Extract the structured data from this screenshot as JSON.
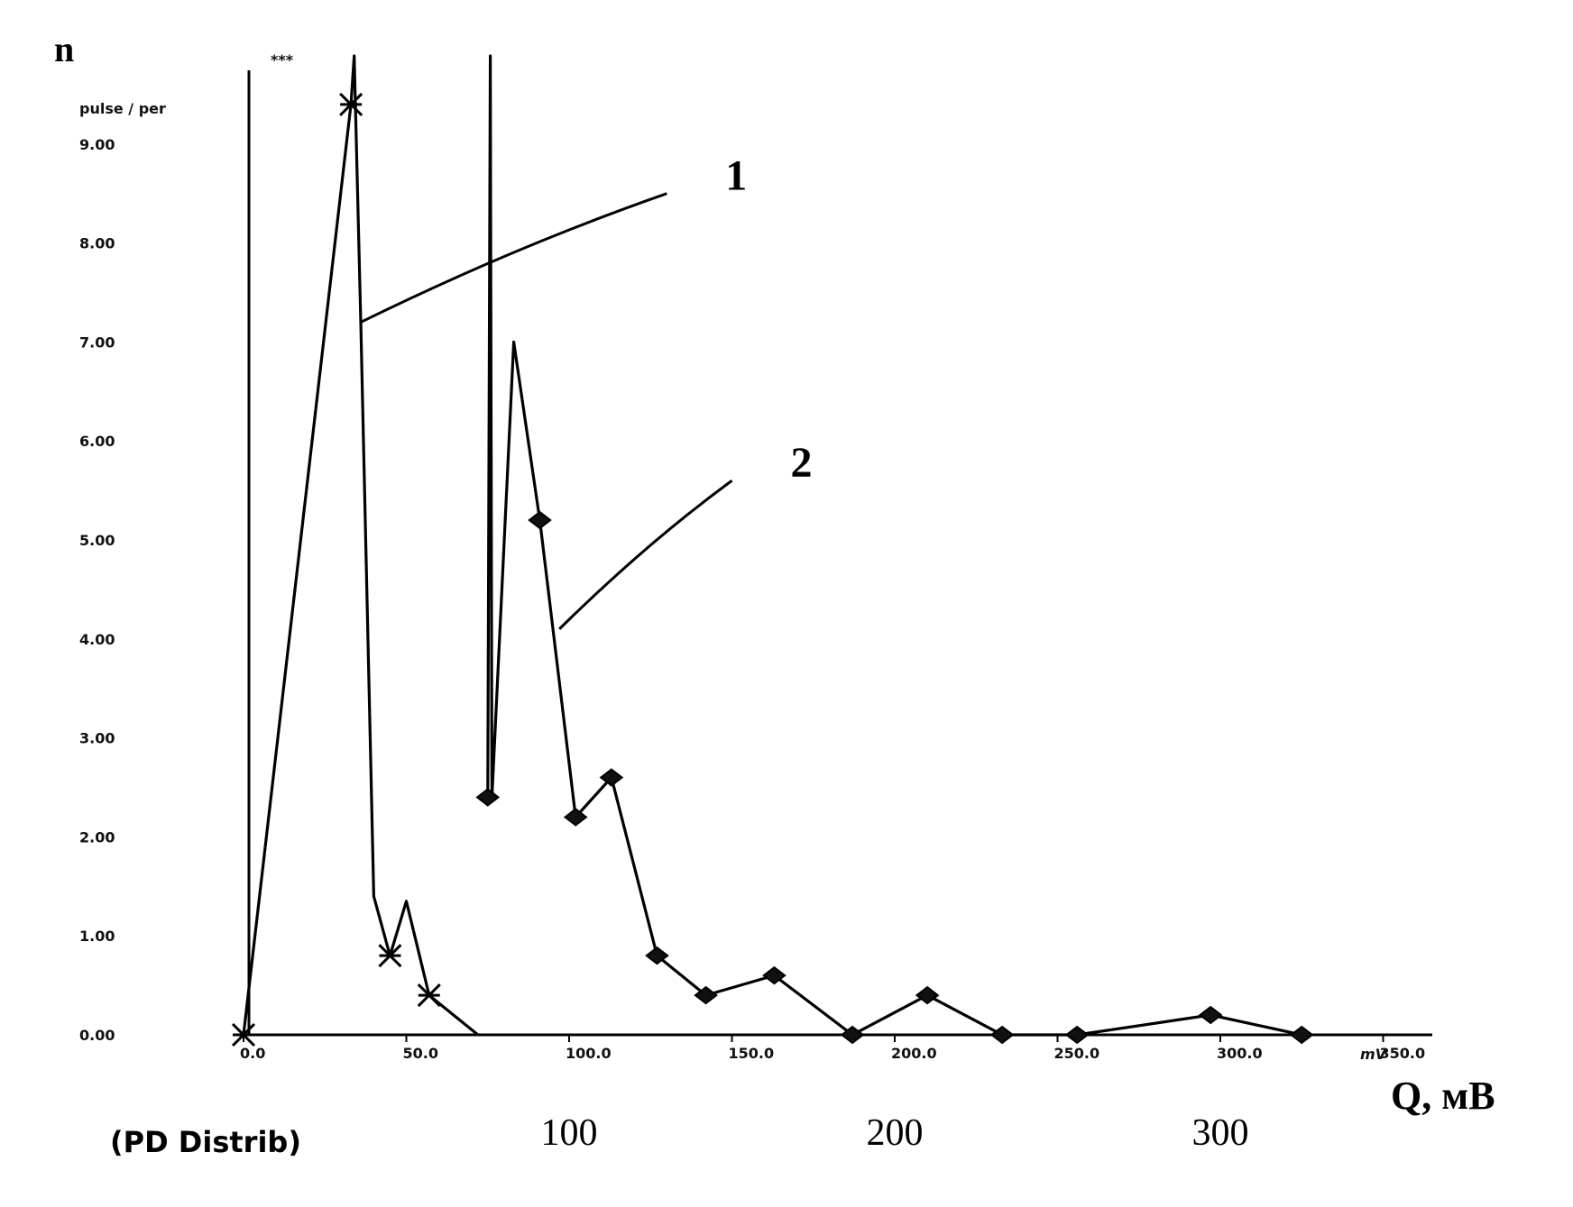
{
  "chart_data": {
    "type": "line",
    "y_label_symbol": "n",
    "y_unit": "pulse / per",
    "y_top_marker": "***",
    "y_ticks": [
      "0.00",
      "1.00",
      "2.00",
      "3.00",
      "4.00",
      "5.00",
      "6.00",
      "7.00",
      "8.00",
      "9.00"
    ],
    "ylim": [
      0,
      10
    ],
    "x_ticks": [
      "0.0",
      "50.0",
      "100.0",
      "150.0",
      "200.0",
      "250.0",
      "300.0",
      "350.0"
    ],
    "x_tick_values": [
      0,
      50,
      100,
      150,
      200,
      250,
      300,
      350
    ],
    "x_unit": "mV",
    "xlim": [
      0,
      375
    ],
    "x_secondary_ticks": [
      {
        "label": "100",
        "value": 100
      },
      {
        "label": "200",
        "value": 200
      },
      {
        "label": "300",
        "value": 300
      }
    ],
    "x_axis_label": "Q, мВ",
    "footer": "(PD Distrib)",
    "series": [
      {
        "name": "1",
        "marker": "star",
        "points": [
          [
            0,
            0
          ],
          [
            33,
            9.4
          ],
          [
            34,
            10
          ],
          [
            36,
            7.2
          ],
          [
            40,
            1.4
          ],
          [
            45,
            0.8
          ],
          [
            50,
            1.35
          ],
          [
            57,
            0.4
          ],
          [
            72,
            0
          ]
        ],
        "marked": [
          [
            0,
            0
          ],
          [
            33,
            9.4
          ],
          [
            45,
            0.8
          ],
          [
            57,
            0.4
          ]
        ]
      },
      {
        "name": "2",
        "marker": "diamond",
        "points": [
          [
            75,
            2.4
          ],
          [
            75.8,
            10
          ],
          [
            76.3,
            2.4
          ],
          [
            83,
            7
          ],
          [
            91,
            5.2
          ],
          [
            102,
            2.2
          ],
          [
            113,
            2.6
          ],
          [
            127,
            0.8
          ],
          [
            142,
            0.4
          ],
          [
            163,
            0.6
          ],
          [
            187,
            0
          ],
          [
            210,
            0.4
          ],
          [
            233,
            0
          ],
          [
            256,
            0
          ],
          [
            297,
            0.2
          ],
          [
            325,
            0
          ]
        ],
        "marked": [
          [
            75,
            2.4
          ],
          [
            91,
            5.2
          ],
          [
            102,
            2.2
          ],
          [
            113,
            2.6
          ],
          [
            127,
            0.8
          ],
          [
            142,
            0.4
          ],
          [
            163,
            0.6
          ],
          [
            187,
            0
          ],
          [
            210,
            0.4
          ],
          [
            233,
            0
          ],
          [
            256,
            0
          ],
          [
            297,
            0.2
          ],
          [
            325,
            0
          ]
        ]
      }
    ],
    "annotations": [
      {
        "label": "1",
        "series": "1",
        "anchor": [
          36,
          7.2
        ],
        "tip": [
          130,
          8.5
        ]
      },
      {
        "label": "2",
        "series": "2",
        "anchor": [
          97,
          4.1
        ],
        "tip": [
          150,
          5.6
        ]
      }
    ],
    "grid": false
  }
}
